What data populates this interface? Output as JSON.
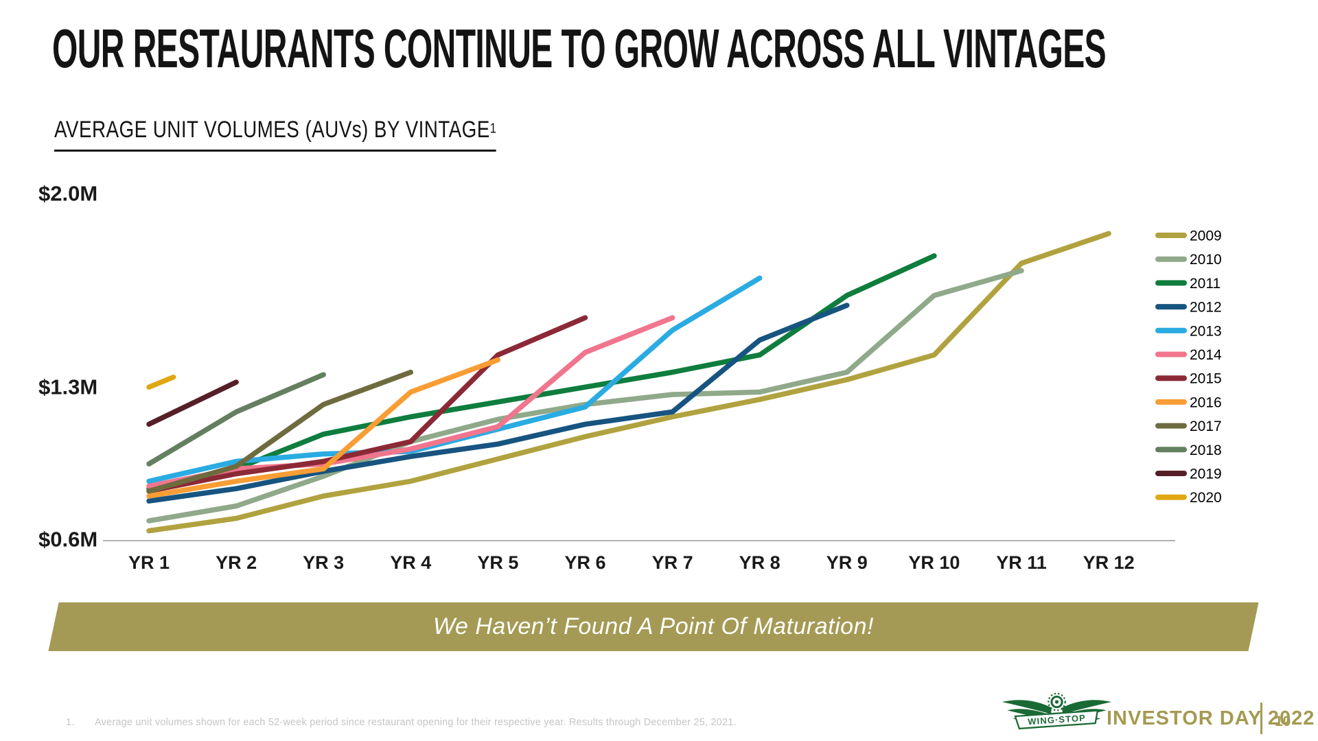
{
  "slide": {
    "title": "OUR RESTAURANTS CONTINUE TO GROW ACROSS ALL VINTAGES",
    "subtitle": {
      "text": "AVERAGE UNIT VOLUMES (AUVs) BY VINTAGE",
      "superscript": "1"
    },
    "banner_text": "We Haven’t Found A Point Of Maturation!",
    "footnote": {
      "marker": "1.",
      "text": "Average unit volumes shown for each 52-week period since restaurant opening for their respective year. Results through December 25, 2021."
    },
    "footer": {
      "brand": "WING·STOP",
      "event": "INVESTOR DAY 2022",
      "page": "10"
    }
  },
  "chart_data": {
    "type": "line",
    "title": "AVERAGE UNIT VOLUMES (AUVs) BY VINTAGE",
    "unit": "$M (average unit volume)",
    "x_tick_labels": [
      "YR 1",
      "YR 2",
      "YR 3",
      "YR 4",
      "YR 5",
      "YR 6",
      "YR 7",
      "YR 8",
      "YR 9",
      "YR 10",
      "YR 11",
      "YR 12"
    ],
    "y_tick_labels": [
      {
        "label": "$2.0M",
        "value": 2.0
      },
      {
        "label": "$1.3M",
        "value": 1.3
      },
      {
        "label": "$0.6M",
        "value": 0.6
      }
    ],
    "ylim": [
      0.6,
      2.0
    ],
    "grid": false,
    "legend_position": "right",
    "series": [
      {
        "name": "2009",
        "color": "#b1a240",
        "points": [
          [
            1,
            0.64
          ],
          [
            2,
            0.69
          ],
          [
            3,
            0.78
          ],
          [
            4,
            0.84
          ],
          [
            5,
            0.93
          ],
          [
            6,
            1.02
          ],
          [
            7,
            1.1
          ],
          [
            8,
            1.17
          ],
          [
            9,
            1.25
          ],
          [
            10,
            1.35
          ],
          [
            11,
            1.72
          ],
          [
            12,
            1.84
          ]
        ]
      },
      {
        "name": "2010",
        "color": "#8fa98a",
        "points": [
          [
            1,
            0.68
          ],
          [
            2,
            0.74
          ],
          [
            3,
            0.86
          ],
          [
            4,
            1.0
          ],
          [
            5,
            1.09
          ],
          [
            6,
            1.15
          ],
          [
            7,
            1.19
          ],
          [
            8,
            1.2
          ],
          [
            9,
            1.28
          ],
          [
            10,
            1.59
          ],
          [
            11,
            1.69
          ]
        ]
      },
      {
        "name": "2011",
        "color": "#0e7d3e",
        "points": [
          [
            1,
            0.81
          ],
          [
            2,
            0.89
          ],
          [
            3,
            1.03
          ],
          [
            4,
            1.1
          ],
          [
            5,
            1.16
          ],
          [
            6,
            1.22
          ],
          [
            7,
            1.28
          ],
          [
            8,
            1.35
          ],
          [
            9,
            1.59
          ],
          [
            10,
            1.75
          ]
        ]
      },
      {
        "name": "2012",
        "color": "#175480",
        "points": [
          [
            1,
            0.76
          ],
          [
            2,
            0.81
          ],
          [
            3,
            0.88
          ],
          [
            4,
            0.94
          ],
          [
            5,
            0.99
          ],
          [
            6,
            1.07
          ],
          [
            7,
            1.12
          ],
          [
            8,
            1.41
          ],
          [
            9,
            1.55
          ]
        ]
      },
      {
        "name": "2013",
        "color": "#2aabe2",
        "points": [
          [
            1,
            0.84
          ],
          [
            2,
            0.92
          ],
          [
            3,
            0.95
          ],
          [
            4,
            0.96
          ],
          [
            5,
            1.05
          ],
          [
            6,
            1.14
          ],
          [
            7,
            1.45
          ],
          [
            8,
            1.66
          ]
        ]
      },
      {
        "name": "2014",
        "color": "#f0758d",
        "points": [
          [
            1,
            0.82
          ],
          [
            2,
            0.89
          ],
          [
            3,
            0.91
          ],
          [
            4,
            0.97
          ],
          [
            5,
            1.06
          ],
          [
            6,
            1.36
          ],
          [
            7,
            1.5
          ]
        ]
      },
      {
        "name": "2015",
        "color": "#8c2936",
        "points": [
          [
            1,
            0.8
          ],
          [
            2,
            0.87
          ],
          [
            3,
            0.92
          ],
          [
            4,
            1.0
          ],
          [
            5,
            1.35
          ],
          [
            6,
            1.5
          ]
        ]
      },
      {
        "name": "2016",
        "color": "#f99d35",
        "points": [
          [
            1,
            0.78
          ],
          [
            2,
            0.84
          ],
          [
            3,
            0.89
          ],
          [
            4,
            1.2
          ],
          [
            5,
            1.33
          ]
        ]
      },
      {
        "name": "2017",
        "color": "#6e6b3f",
        "points": [
          [
            1,
            0.8
          ],
          [
            2,
            0.9
          ],
          [
            3,
            1.15
          ],
          [
            4,
            1.28
          ]
        ]
      },
      {
        "name": "2018",
        "color": "#647f5f",
        "points": [
          [
            1,
            0.91
          ],
          [
            2,
            1.12
          ],
          [
            3,
            1.27
          ]
        ]
      },
      {
        "name": "2019",
        "color": "#561f27",
        "points": [
          [
            1,
            1.07
          ],
          [
            2,
            1.24
          ]
        ]
      },
      {
        "name": "2020",
        "color": "#dfa712",
        "points": [
          [
            1,
            1.22
          ],
          [
            1.28,
            1.26
          ]
        ]
      }
    ]
  }
}
